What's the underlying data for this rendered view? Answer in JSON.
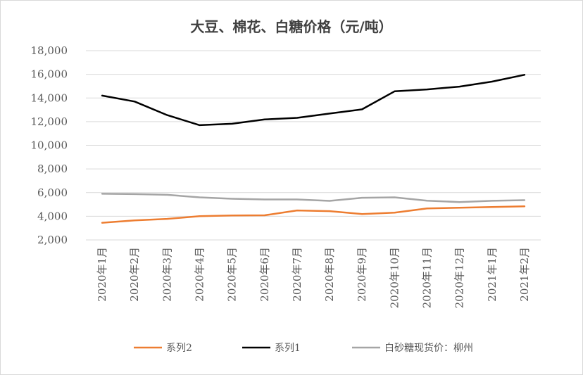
{
  "chart_data": {
    "type": "line",
    "title": "大豆、棉花、白糖价格（元/吨）",
    "xlabel": "",
    "ylabel": "",
    "categories": [
      "2020年1月",
      "2020年2月",
      "2020年3月",
      "2020年4月",
      "2020年5月",
      "2020年6月",
      "2020年7月",
      "2020年8月",
      "2020年9月",
      "2020年10月",
      "2020年11月",
      "2020年12月",
      "2021年1月",
      "2021年2月"
    ],
    "ylim": [
      2000,
      18000
    ],
    "yticks": [
      2000,
      4000,
      6000,
      8000,
      10000,
      12000,
      14000,
      16000,
      18000
    ],
    "ytick_labels": [
      "2,000",
      "4,000",
      "6,000",
      "8,000",
      "10,000",
      "12,000",
      "14,000",
      "16,000",
      "18,000"
    ],
    "grid": true,
    "legend_position": "bottom",
    "series": [
      {
        "name": "系列2",
        "color": "#ed7d31",
        "values": [
          3450,
          3650,
          3780,
          4010,
          4070,
          4080,
          4490,
          4430,
          4190,
          4300,
          4660,
          4720,
          4780,
          4840
        ]
      },
      {
        "name": "系列1",
        "color": "#000000",
        "values": [
          14200,
          13700,
          12550,
          11700,
          11820,
          12180,
          12320,
          12680,
          13040,
          14560,
          14720,
          14960,
          15380,
          15960
        ]
      },
      {
        "name": "白砂糖现货价：柳州",
        "color": "#a5a5a5",
        "values": [
          5900,
          5870,
          5810,
          5600,
          5480,
          5420,
          5420,
          5300,
          5560,
          5600,
          5320,
          5200,
          5310,
          5360
        ]
      }
    ]
  }
}
